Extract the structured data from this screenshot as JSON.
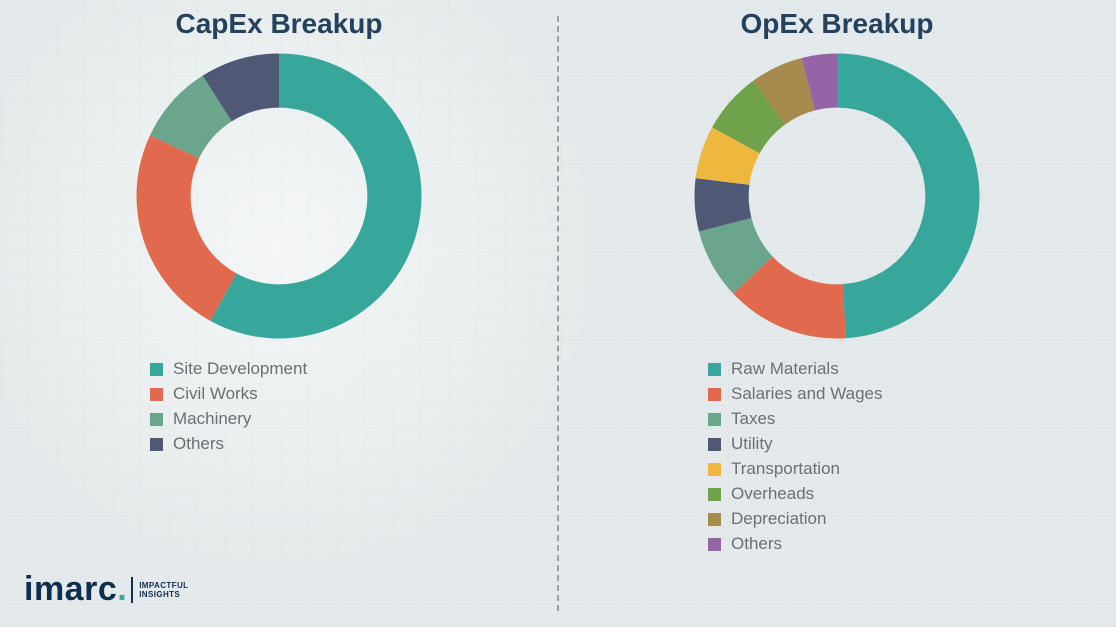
{
  "background_color": "#eef2f3",
  "title_color": "#24425e",
  "title_fontsize": 28,
  "legend_font_color": "#6a6f73",
  "legend_fontsize": 17,
  "divider_color": "#9aa4a8",
  "logo": {
    "word": "imarc",
    "tagline_line1": "IMPACTFUL",
    "tagline_line2": "INSIGHTS",
    "dot_color": "#3aa6a0",
    "text_color": "#0f2f4f"
  },
  "capex": {
    "title": "CapEx Breakup",
    "type": "donut",
    "inner_radius_ratio": 0.62,
    "start_angle_deg": 0,
    "segments": [
      {
        "label": "Site Development",
        "value": 58,
        "color": "#37a79b"
      },
      {
        "label": "Civil Works",
        "value": 24,
        "color": "#e1694d"
      },
      {
        "label": "Machinery",
        "value": 9,
        "color": "#6aa58c"
      },
      {
        "label": "Others",
        "value": 9,
        "color": "#4f5975"
      }
    ]
  },
  "opex": {
    "title": "OpEx Breakup",
    "type": "donut",
    "inner_radius_ratio": 0.62,
    "start_angle_deg": 0,
    "segments": [
      {
        "label": "Raw Materials",
        "value": 49,
        "color": "#37a79b"
      },
      {
        "label": "Salaries and Wages",
        "value": 14,
        "color": "#e1694d"
      },
      {
        "label": "Taxes",
        "value": 8,
        "color": "#6aa58c"
      },
      {
        "label": "Utility",
        "value": 6,
        "color": "#4f5975"
      },
      {
        "label": "Transportation",
        "value": 6,
        "color": "#eeb83e"
      },
      {
        "label": "Overheads",
        "value": 7,
        "color": "#6fa24a"
      },
      {
        "label": "Depreciation",
        "value": 6,
        "color": "#a68a4e"
      },
      {
        "label": "Others",
        "value": 4,
        "color": "#9464a6"
      }
    ]
  }
}
